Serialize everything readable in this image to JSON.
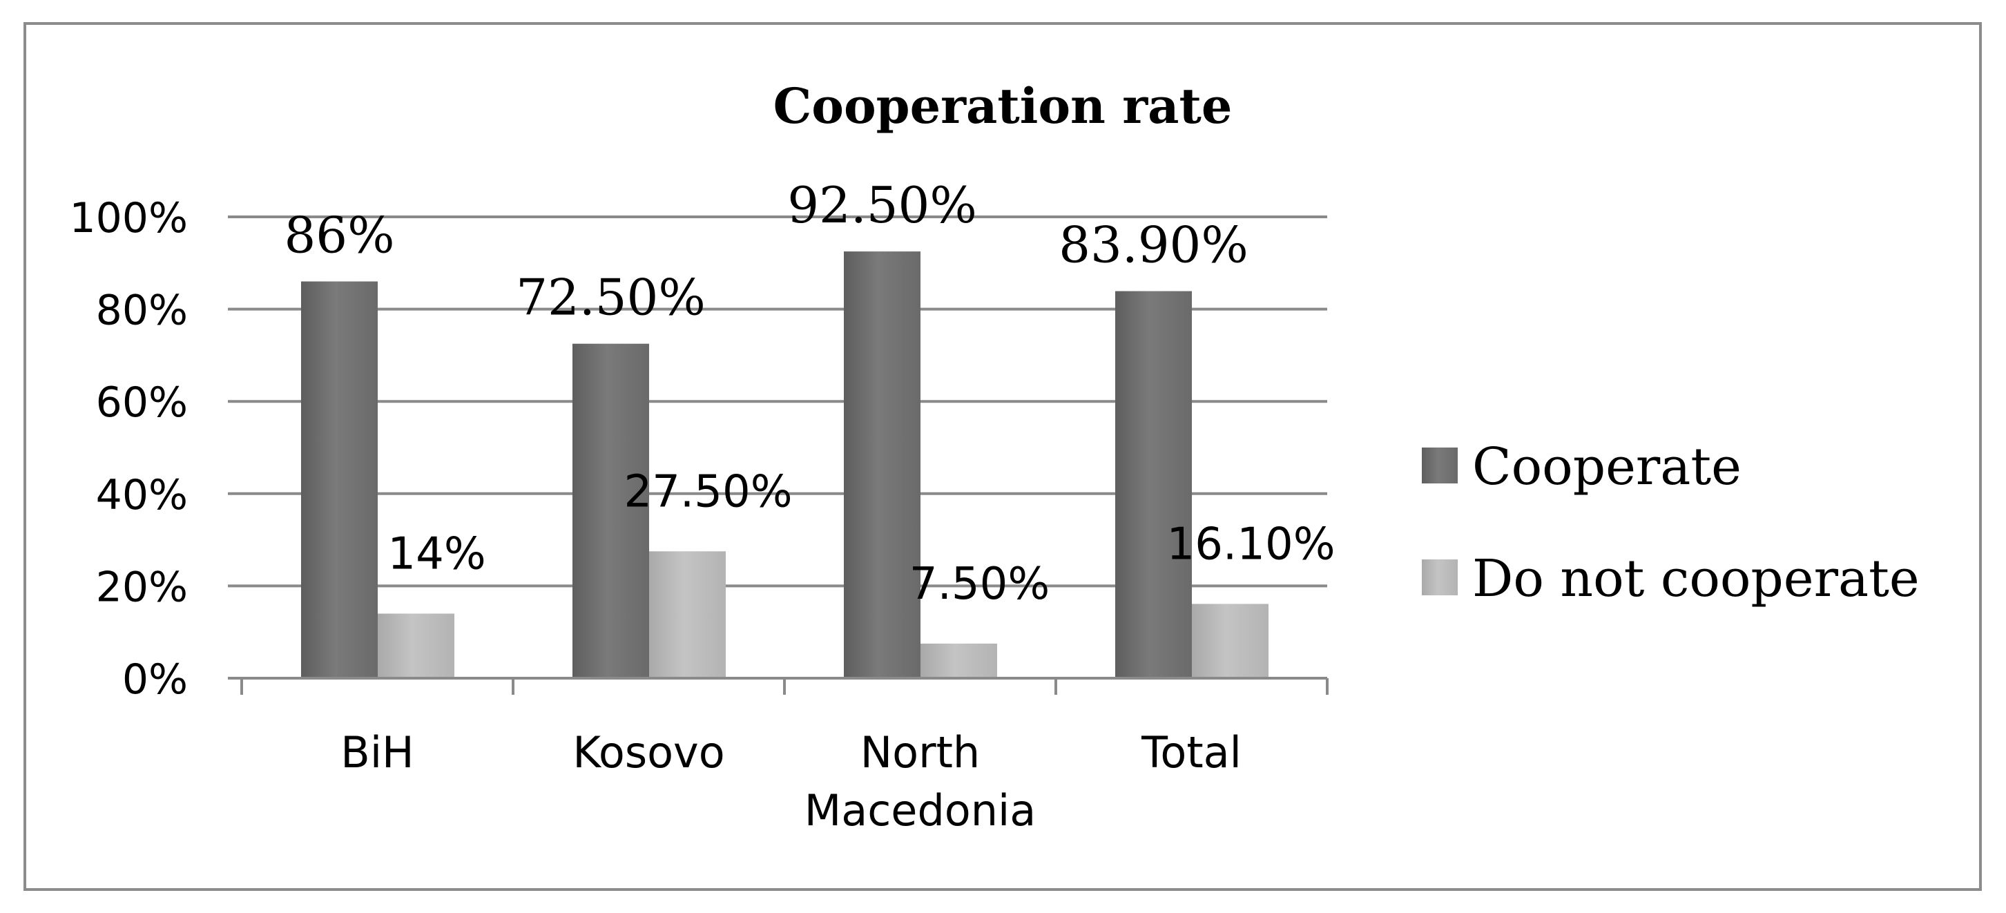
{
  "chart_data": {
    "type": "bar",
    "title": "Cooperation rate",
    "xlabel": "",
    "ylabel": "",
    "categories": [
      [
        "BiH"
      ],
      [
        "Kosovo"
      ],
      [
        "North",
        "Macedonia"
      ],
      [
        "Total"
      ]
    ],
    "series": [
      {
        "name": "Cooperate",
        "values": [
          86,
          72.5,
          92.5,
          83.9
        ],
        "labels": [
          "86%",
          "72.50%",
          "92.50%",
          "83.90%"
        ],
        "color": "#6e6e6e"
      },
      {
        "name": "Do not cooperate",
        "values": [
          14,
          27.5,
          7.5,
          16.1
        ],
        "labels": [
          "14%",
          "27.50%",
          "7.50%",
          "16.10%"
        ],
        "color": "#b9b9b9"
      }
    ],
    "ylim": [
      0,
      100
    ],
    "yticks": [
      0,
      20,
      40,
      60,
      80,
      100
    ],
    "ytick_labels": [
      "0%",
      "20%",
      "40%",
      "60%",
      "80%",
      "100%"
    ],
    "grid": true,
    "legend_position": "right"
  }
}
